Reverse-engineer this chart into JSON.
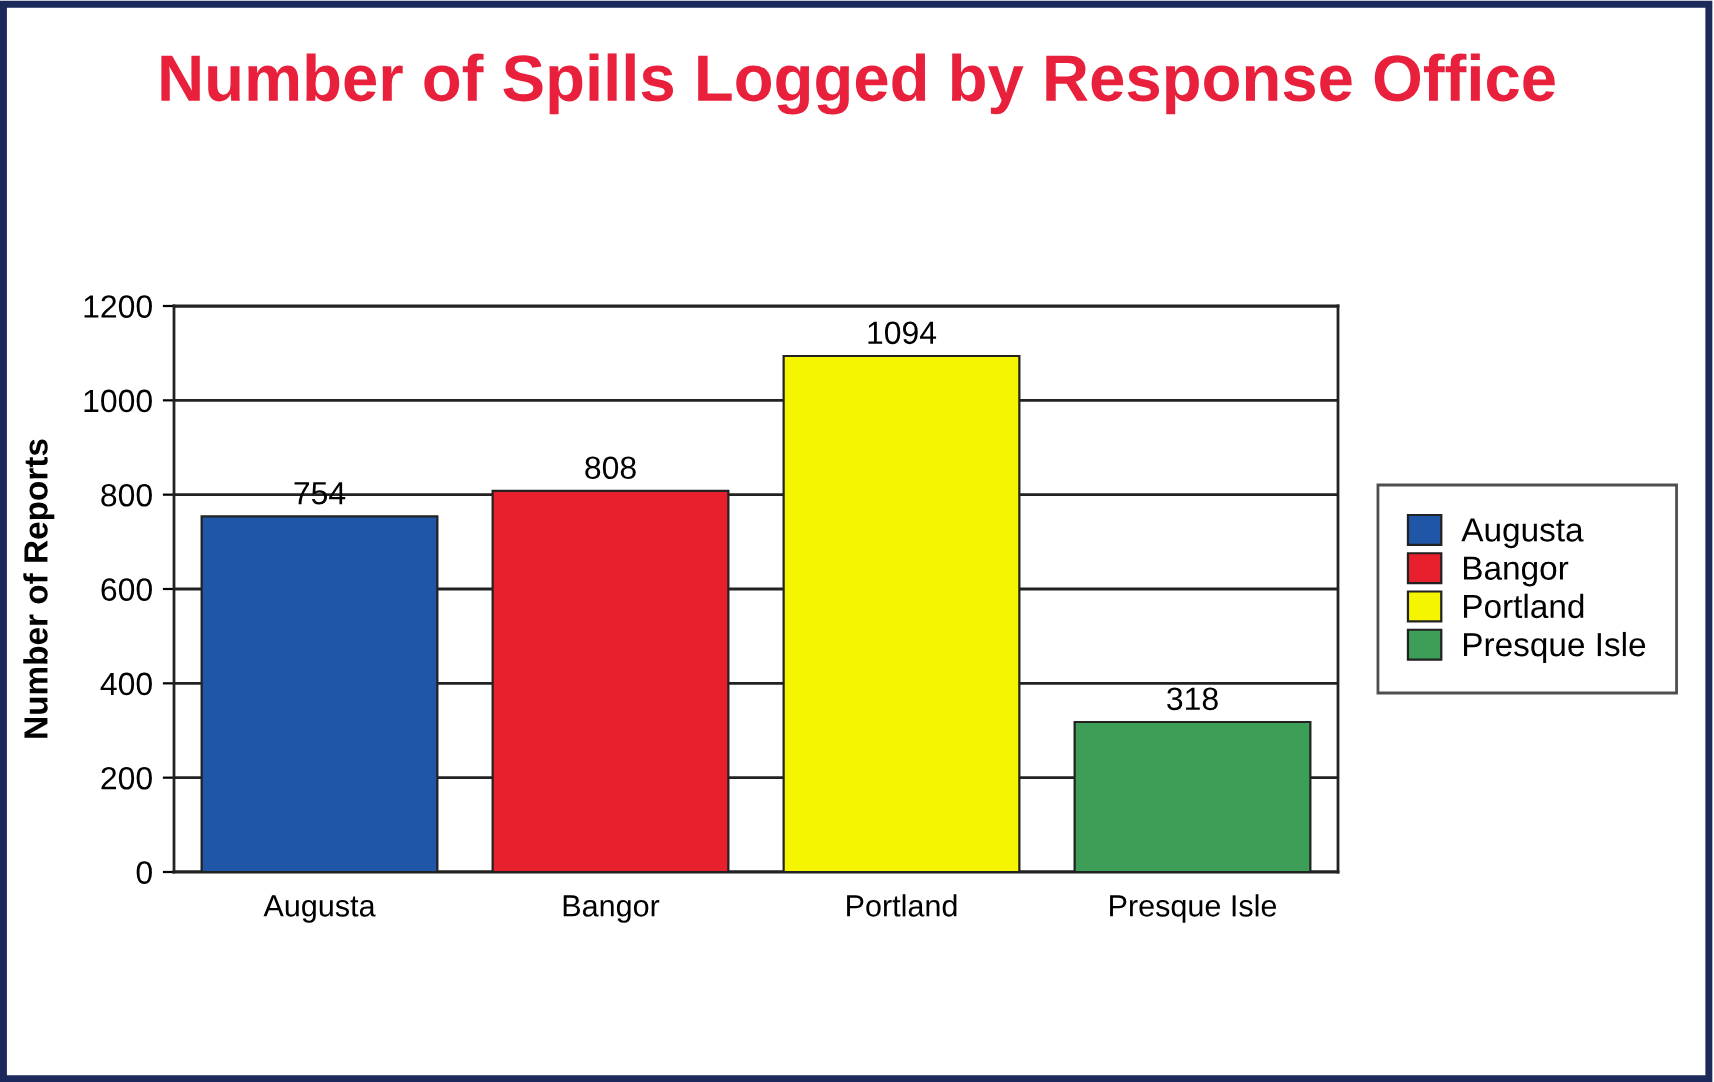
{
  "chart_data": {
    "type": "bar",
    "title": "Number of Spills Logged by Response Office",
    "ylabel": "Number of Reports",
    "categories": [
      "Augusta",
      "Bangor",
      "Portland",
      "Presque Isle"
    ],
    "series": [
      {
        "name": "Augusta",
        "color": "#1f56a8",
        "values": [
          754,
          null,
          null,
          null
        ]
      },
      {
        "name": "Bangor",
        "color": "#e8202e",
        "values": [
          null,
          808,
          null,
          null
        ]
      },
      {
        "name": "Portland",
        "color": "#f5f500",
        "values": [
          null,
          null,
          1094,
          null
        ]
      },
      {
        "name": "Presque Isle",
        "color": "#3d9e58",
        "values": [
          null,
          null,
          null,
          318
        ]
      }
    ],
    "stacked": true,
    "ylim": [
      0,
      1200
    ],
    "yticks": [
      0,
      200,
      400,
      600,
      800,
      1000,
      1200
    ],
    "grid": "y",
    "legend": "right",
    "data_labels": true
  }
}
